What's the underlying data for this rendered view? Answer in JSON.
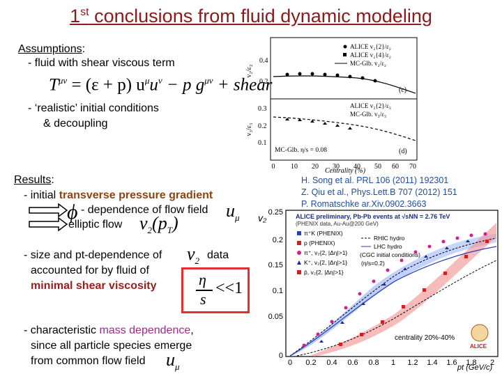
{
  "title": {
    "prefix": "1",
    "sup": "st",
    "rest": " conclusions from fluid dynamic modeling"
  },
  "assumptions": {
    "heading": "Assumptions",
    "item1": "- fluid with shear viscous term",
    "equation_T": "T",
    "equation_rest": "= (ε + p) u",
    "equation_tail": "u",
    "equation_end": "− p g",
    "shear_word": "+ shear",
    "item2_line1": "- ‘realistic’ initial conditions",
    "item2_line2": "& decoupling"
  },
  "results": {
    "heading": "Results",
    "line1_prefix": "- initial",
    "line1_highlight": "transverse pressure gradient",
    "phi_label": "- dependence of flow field",
    "elliptic_label": "elliptic flow",
    "size_line1": "- size and pt-dependence of",
    "size_data": "data",
    "size_line2": "accounted for by fluid of",
    "size_line3": "minimal shear viscosity",
    "mass_line1_prefix": "- characteristic",
    "mass_highlight": "mass dependence",
    "mass_line1_suffix": ",",
    "mass_line2": "since all particle species emerge",
    "mass_line3": "from common flow field"
  },
  "references": [
    "H. Song et al. PRL 106 (2011) 192301",
    "Z. Qiu et al., Phys.Lett.B 707 (2012) 151",
    "P. Romatschke ar.Xiv.0902.3663"
  ],
  "top_chart": {
    "panel_c_legend": [
      "ALICE v₂{2}/ε₂",
      "ALICE v₂{4}/ε₂",
      "MC-Glb. v₂/ε₂"
    ],
    "panel_d_legend": [
      "ALICE v₃{2}/ε₃",
      "MC-Glb. v₃/ε₃"
    ],
    "panel_c_tag": "(c)",
    "panel_d_tag": "(d)",
    "eta_label": "MC-Glb. η/s = 0.08",
    "y_ticks_c": [
      "0.4",
      "0.2"
    ],
    "y_ticks_d": [
      "0.3",
      "0.2",
      "0.1"
    ],
    "x_ticks": [
      "0",
      "10",
      "20",
      "30",
      "40",
      "50",
      "60",
      "70"
    ],
    "xlabel": "Centrality (%)"
  },
  "bottom_chart": {
    "ylabel": "v₂",
    "xlabel": "pt (GeV/c)",
    "y_ticks": [
      "0.25",
      "0.2",
      "0.15",
      "0.1",
      "0.05",
      "0"
    ],
    "x_ticks": [
      "0",
      "0.2",
      "0.4",
      "0.6",
      "0.8",
      "1",
      "1.2",
      "1.4",
      "1.6",
      "1.8",
      "2"
    ],
    "header1": "ALICE preliminary, Pb-Pb events at √sNN = 2.76 TeV",
    "header2": "(PHENIX data, Au-Au@200 GeV)",
    "legend_left": [
      "π⁺K (PHENIX)",
      "p (PHENIX)",
      "π⁺, v₂{2, |Δη|>1}",
      "K⁺, v₂{2, |Δη|>1}",
      "p̄, v₂{2, |Δη|>1}"
    ],
    "legend_right": [
      "RHIC hydro",
      "LHC hydro",
      "(CGC initial conditions)",
      "(η/s=0.2)"
    ],
    "centrality": "centrality 20%-40%",
    "logo": "ALICE"
  }
}
